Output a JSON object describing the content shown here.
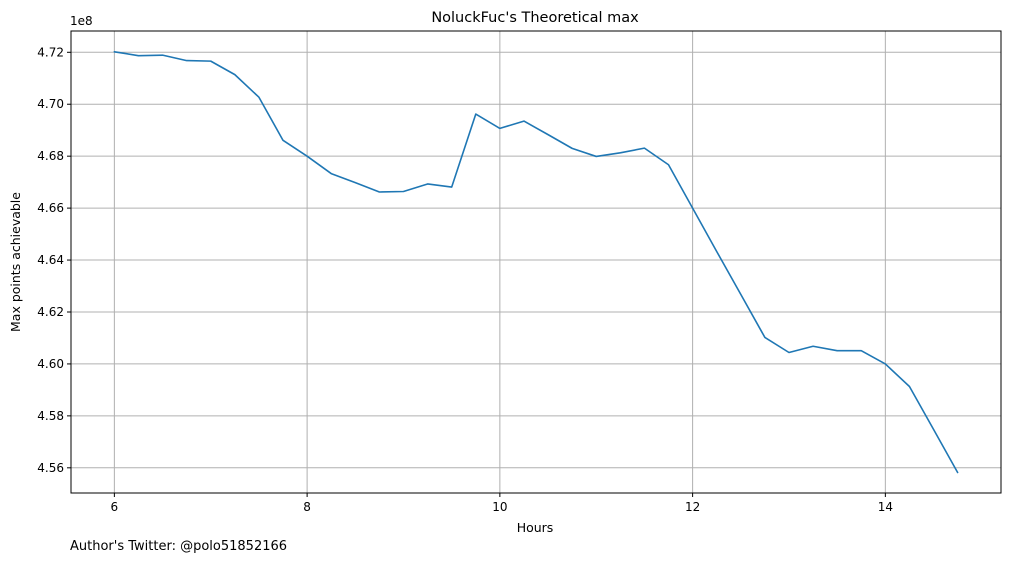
{
  "chart_data": {
    "type": "line",
    "title": "NoluckFuc's Theoretical max",
    "xlabel": "Hours",
    "ylabel": "Max points achievable",
    "y_offset_label": "1e8",
    "xlim": [
      5.55,
      15.2
    ],
    "ylim": [
      4.5503,
      4.7282
    ],
    "x_ticks": [
      6,
      8,
      10,
      12,
      14
    ],
    "y_ticks": [
      4.56,
      4.58,
      4.6,
      4.62,
      4.64,
      4.66,
      4.68,
      4.7,
      4.72
    ],
    "grid": true,
    "line_color": "#1f77b4",
    "series": [
      {
        "x": [
          6.0,
          6.25,
          6.5,
          6.75,
          7.0,
          7.25,
          7.5,
          7.75,
          8.0,
          8.25,
          8.5,
          8.75,
          9.0,
          9.25,
          9.5,
          9.75,
          10.0,
          10.25,
          10.5,
          10.75,
          11.0,
          11.25,
          11.5,
          11.75,
          12.0,
          12.25,
          12.5,
          12.75,
          13.0,
          13.25,
          13.5,
          13.75,
          14.0,
          14.25,
          14.5,
          14.75
        ],
        "y": [
          4.7202,
          4.7187,
          4.7189,
          4.7168,
          4.7166,
          4.7114,
          4.7027,
          4.6861,
          4.68,
          4.6733,
          4.6698,
          4.6662,
          4.6664,
          4.6693,
          4.6681,
          4.6962,
          4.6907,
          4.6935,
          4.6883,
          4.683,
          4.6799,
          4.6813,
          4.6831,
          4.6767,
          4.66,
          4.6433,
          4.6268,
          4.6102,
          4.6044,
          4.6068,
          4.6051,
          4.6051,
          4.6,
          4.5913,
          4.5748,
          4.5582
        ]
      }
    ]
  },
  "footer": {
    "author_text": "Author's Twitter: @polo51852166"
  }
}
